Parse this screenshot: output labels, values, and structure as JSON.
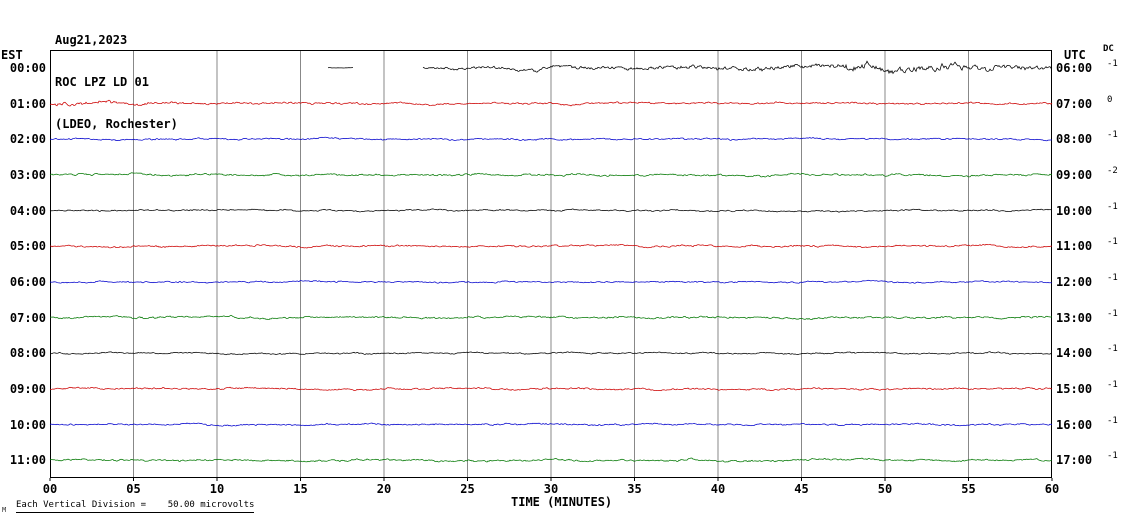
{
  "header": {
    "date": "Aug21,2023",
    "station": "ROC LPZ LD 01",
    "location": "(LDEO, Rochester)"
  },
  "axis": {
    "left_label": "EST",
    "right_label": "UTC",
    "dc_label": "DC",
    "x_title": "TIME (MINUTES)",
    "x_ticks": [
      "00",
      "05",
      "10",
      "15",
      "20",
      "25",
      "30",
      "35",
      "40",
      "45",
      "50",
      "55",
      "60"
    ]
  },
  "footer": {
    "scale_note": "Each Vertical Division =    50.00 microvolts",
    "corner_glyph": "M"
  },
  "chart_data": {
    "type": "line",
    "title": "ROC LPZ LD 01 helicorder, Aug21,2023 (LDEO, Rochester)",
    "x_unit": "minutes",
    "x_range": [
      0,
      60
    ],
    "xlabel": "TIME (MINUTES)",
    "vertical_division_microvolts": 50.0,
    "segment_format": "[start_minute, end_minute, noise_amplitude_px] ; amplitude 0 = no trace recorded",
    "rows": [
      {
        "est": "00:00",
        "utc": "06:00",
        "dc": "-1",
        "color": "#000000",
        "segments": [
          [
            0,
            16.6,
            0
          ],
          [
            16.6,
            18.2,
            0.35
          ],
          [
            18.2,
            22.3,
            0
          ],
          [
            22.3,
            28,
            1.6
          ],
          [
            28,
            36,
            2.0
          ],
          [
            36,
            42,
            2.5
          ],
          [
            42,
            47,
            3.2
          ],
          [
            47,
            52,
            4.6
          ],
          [
            52,
            56,
            4.0
          ],
          [
            56,
            60,
            3.2
          ]
        ]
      },
      {
        "est": "01:00",
        "utc": "07:00",
        "dc": "0",
        "color": "#cc0000",
        "segments": [
          [
            0,
            4,
            2.4
          ],
          [
            4,
            8,
            1.7
          ],
          [
            8,
            60,
            1.2
          ]
        ]
      },
      {
        "est": "02:00",
        "utc": "08:00",
        "dc": "-1",
        "color": "#0000cc",
        "segments": [
          [
            0,
            60,
            1.0
          ]
        ]
      },
      {
        "est": "03:00",
        "utc": "09:00",
        "dc": "-2",
        "color": "#007700",
        "segments": [
          [
            0,
            60,
            1.2
          ]
        ]
      },
      {
        "est": "04:00",
        "utc": "10:00",
        "dc": "-1",
        "color": "#000000",
        "segments": [
          [
            0,
            60,
            0.9
          ]
        ]
      },
      {
        "est": "05:00",
        "utc": "11:00",
        "dc": "-1",
        "color": "#cc0000",
        "segments": [
          [
            0,
            60,
            1.1
          ]
        ]
      },
      {
        "est": "06:00",
        "utc": "12:00",
        "dc": "-1",
        "color": "#0000cc",
        "segments": [
          [
            0,
            60,
            0.9
          ]
        ]
      },
      {
        "est": "07:00",
        "utc": "13:00",
        "dc": "-1",
        "color": "#007700",
        "segments": [
          [
            0,
            60,
            1.2
          ]
        ]
      },
      {
        "est": "08:00",
        "utc": "14:00",
        "dc": "-1",
        "color": "#000000",
        "segments": [
          [
            0,
            60,
            0.9
          ]
        ]
      },
      {
        "est": "09:00",
        "utc": "15:00",
        "dc": "-1",
        "color": "#cc0000",
        "segments": [
          [
            0,
            60,
            1.1
          ]
        ]
      },
      {
        "est": "10:00",
        "utc": "16:00",
        "dc": "-1",
        "color": "#0000cc",
        "segments": [
          [
            0,
            60,
            1.0
          ]
        ]
      },
      {
        "est": "11:00",
        "utc": "17:00",
        "dc": "-1",
        "color": "#007700",
        "segments": [
          [
            0,
            60,
            1.2
          ]
        ]
      }
    ]
  }
}
